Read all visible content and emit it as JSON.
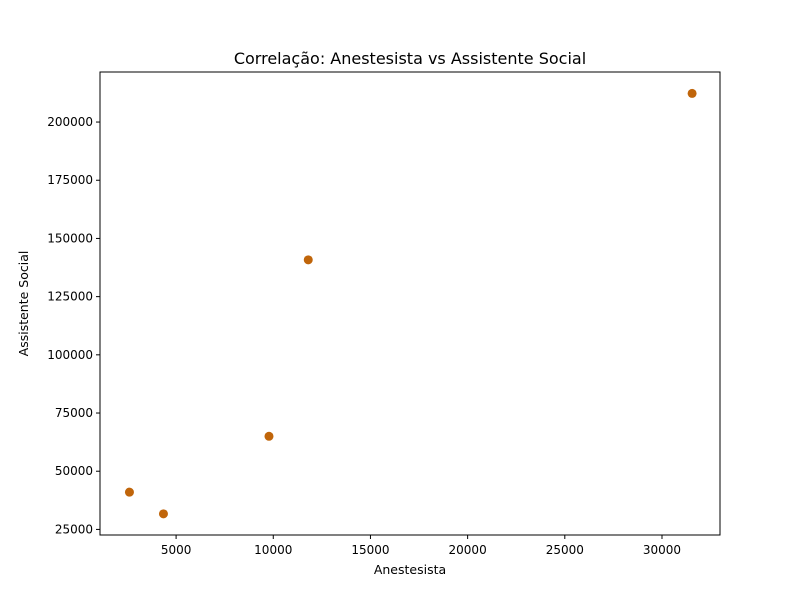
{
  "chart_data": {
    "type": "scatter",
    "title": "Correlação: Anestesista vs Assistente Social",
    "xlabel": "Anestesista",
    "ylabel": "Assistente Social",
    "xlim": [
      1085,
      32985
    ],
    "ylim": [
      22600,
      221500
    ],
    "xticks": [
      5000,
      10000,
      15000,
      20000,
      25000,
      30000
    ],
    "yticks": [
      25000,
      50000,
      75000,
      100000,
      125000,
      150000,
      175000,
      200000
    ],
    "grid": false,
    "point_color": "#c0650a",
    "points": [
      {
        "x": 2600,
        "y": 41000
      },
      {
        "x": 4350,
        "y": 31700
      },
      {
        "x": 9780,
        "y": 65000
      },
      {
        "x": 11800,
        "y": 140800
      },
      {
        "x": 31550,
        "y": 212300
      }
    ]
  }
}
